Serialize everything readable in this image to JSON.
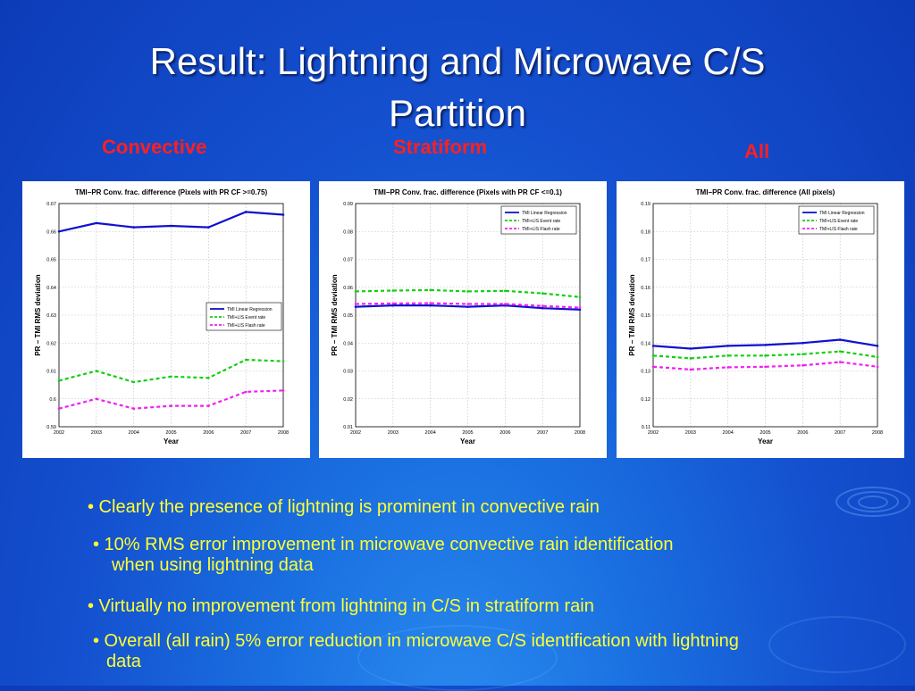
{
  "slide": {
    "title_line1": "Result: Lightning and Microwave C/S",
    "title_line2": "Partition",
    "column_labels": [
      "Convective",
      "Stratiform",
      "All"
    ],
    "accent_label_color": "#ff2020",
    "bullet_color": "#ffff33"
  },
  "bullets": [
    {
      "line1": "• Clearly the presence of lightning is prominent in convective rain",
      "line2": ""
    },
    {
      "line1": "• 10% RMS error improvement in microwave convective rain identification",
      "line2": "when using lightning data"
    },
    {
      "line1": "• Virtually no improvement from lightning in C/S in stratiform rain",
      "line2": ""
    },
    {
      "line1": "• Overall (all rain) 5% error reduction in microwave C/S identification with lightning",
      "line2": "data"
    }
  ],
  "chart_data": [
    {
      "type": "line",
      "title": "TMI−PR Conv. frac. difference (Pixels with PR CF >=0.75)",
      "xlabel": "Year",
      "ylabel": "PR − TMI RMS deviation",
      "x": [
        2002,
        2003,
        2004,
        2005,
        2006,
        2007,
        2008
      ],
      "xticks": [
        "2002",
        "2003",
        "2004",
        "2005",
        "2006",
        "2007",
        "2008"
      ],
      "ylim": [
        0.59,
        0.67
      ],
      "yticks": [
        "0.59",
        "0.6",
        "0.61",
        "0.62",
        "0.63",
        "0.64",
        "0.65",
        "0.66",
        "0.67"
      ],
      "legend_position": "center-right",
      "grid": true,
      "series": [
        {
          "name": "TMI Linear Regression",
          "color": "#1010d0",
          "dash": "solid",
          "values": [
            0.66,
            0.663,
            0.6615,
            0.662,
            0.6615,
            0.667,
            0.666
          ]
        },
        {
          "name": "TMI+LIS Event rate",
          "color": "#10d010",
          "dash": "dashed",
          "values": [
            0.6065,
            0.61,
            0.606,
            0.608,
            0.6075,
            0.614,
            0.6135
          ]
        },
        {
          "name": "TMI+LIS Flash rate",
          "color": "#f020f0",
          "dash": "dashed",
          "values": [
            0.5965,
            0.6,
            0.5965,
            0.5975,
            0.5975,
            0.6025,
            0.603
          ]
        }
      ]
    },
    {
      "type": "line",
      "title": "TMI−PR Conv. frac. difference (Pixels with PR CF <=0.1)",
      "xlabel": "Year",
      "ylabel": "PR − TMI RMS deviation",
      "x": [
        2002,
        2003,
        2004,
        2005,
        2006,
        2007,
        2008
      ],
      "xticks": [
        "2002",
        "2003",
        "2004",
        "2005",
        "2006",
        "2007",
        "2008"
      ],
      "ylim": [
        0.01,
        0.09
      ],
      "yticks": [
        "0.01",
        "0.02",
        "0.03",
        "0.04",
        "0.05",
        "0.06",
        "0.07",
        "0.08",
        "0.09"
      ],
      "legend_position": "top-right",
      "grid": true,
      "series": [
        {
          "name": "TMI Linear Regression",
          "color": "#1010d0",
          "dash": "solid",
          "values": [
            0.053,
            0.0535,
            0.0535,
            0.053,
            0.0535,
            0.0525,
            0.052
          ]
        },
        {
          "name": "TMI+LIS Event rate",
          "color": "#10d010",
          "dash": "dashed",
          "values": [
            0.0585,
            0.0588,
            0.059,
            0.0585,
            0.0587,
            0.0578,
            0.0565
          ]
        },
        {
          "name": "TMI+LIS Flash rate",
          "color": "#f020f0",
          "dash": "dashed",
          "values": [
            0.054,
            0.0542,
            0.0543,
            0.054,
            0.054,
            0.0533,
            0.0527
          ]
        }
      ]
    },
    {
      "type": "line",
      "title": "TMI−PR Conv. frac. difference (All pixels)",
      "xlabel": "Year",
      "ylabel": "PR − TMI RMS deviation",
      "x": [
        2002,
        2003,
        2004,
        2005,
        2006,
        2007,
        2008
      ],
      "xticks": [
        "2002",
        "2003",
        "2004",
        "2005",
        "2006",
        "2007",
        "2008"
      ],
      "ylim": [
        0.11,
        0.19
      ],
      "yticks": [
        "0.11",
        "0.12",
        "0.13",
        "0.14",
        "0.15",
        "0.16",
        "0.17",
        "0.18",
        "0.19"
      ],
      "legend_position": "top-right",
      "grid": true,
      "series": [
        {
          "name": "TMI Linear Regression",
          "color": "#1010d0",
          "dash": "solid",
          "values": [
            0.139,
            0.138,
            0.139,
            0.1393,
            0.14,
            0.1412,
            0.139
          ]
        },
        {
          "name": "TMI+LIS Event rate",
          "color": "#10d010",
          "dash": "dashed",
          "values": [
            0.1355,
            0.1345,
            0.1355,
            0.1355,
            0.136,
            0.137,
            0.135
          ]
        },
        {
          "name": "TMI+LIS Flash rate",
          "color": "#f020f0",
          "dash": "dashed",
          "values": [
            0.1315,
            0.1305,
            0.1313,
            0.1315,
            0.132,
            0.1332,
            0.1315
          ]
        }
      ]
    }
  ]
}
